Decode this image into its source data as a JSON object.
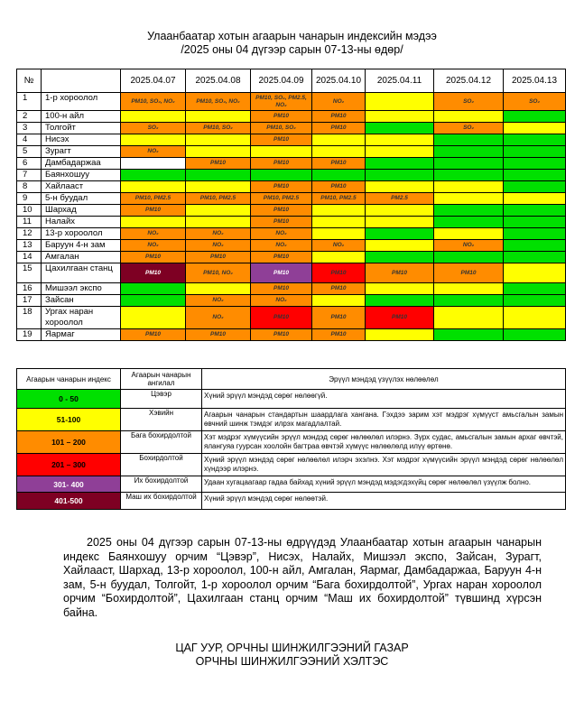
{
  "title_line1": "Улаанбаатар хотын агаарын чанарын индексийн мэдээ",
  "title_line2": "/2025 оны 04 дүгээр сарын 07-13-ны өдөр/",
  "colors": {
    "g": "#00e000",
    "y": "#ffff00",
    "o": "#ff8c00",
    "r": "#ff0000",
    "p": "#8f3f97",
    "m": "#7e0023",
    "w": "#ffffff"
  },
  "table": {
    "no_header": "№",
    "dates": [
      "2025.04.07",
      "2025.04.08",
      "2025.04.09",
      "2025.04.10",
      "2025.04.11",
      "2025.04.12",
      "2025.04.13"
    ],
    "rows": [
      {
        "no": "1",
        "name": "1-р хороолол",
        "cells": [
          [
            "o",
            "PM10, SO₂, NO₂"
          ],
          [
            "o",
            "PM10, SO₂, NO₂"
          ],
          [
            "o",
            "PM10, SO₂, PM2.5, NO₂"
          ],
          [
            "o",
            "NO₂"
          ],
          [
            "y",
            ""
          ],
          [
            "o",
            "SO₂"
          ],
          [
            "o",
            "SO₂"
          ]
        ]
      },
      {
        "no": "2",
        "name": "100-н айл",
        "cells": [
          [
            "y",
            ""
          ],
          [
            "y",
            ""
          ],
          [
            "o",
            "PM10"
          ],
          [
            "o",
            "PM10"
          ],
          [
            "y",
            ""
          ],
          [
            "y",
            ""
          ],
          [
            "g",
            ""
          ]
        ]
      },
      {
        "no": "3",
        "name": "Толгойт",
        "cells": [
          [
            "o",
            "SO₂"
          ],
          [
            "o",
            "PM10, SO₂"
          ],
          [
            "o",
            "PM10, SO₂"
          ],
          [
            "o",
            "PM10"
          ],
          [
            "g",
            ""
          ],
          [
            "o",
            "SO₂"
          ],
          [
            "y",
            ""
          ]
        ]
      },
      {
        "no": "4",
        "name": "Нисэх",
        "cells": [
          [
            "y",
            ""
          ],
          [
            "y",
            ""
          ],
          [
            "o",
            "PM10"
          ],
          [
            "y",
            ""
          ],
          [
            "y",
            ""
          ],
          [
            "g",
            ""
          ],
          [
            "g",
            ""
          ]
        ]
      },
      {
        "no": "5",
        "name": "Зурагт",
        "cells": [
          [
            "o",
            "NO₂"
          ],
          [
            "y",
            ""
          ],
          [
            "y",
            ""
          ],
          [
            "y",
            ""
          ],
          [
            "y",
            ""
          ],
          [
            "g",
            ""
          ],
          [
            "g",
            ""
          ]
        ]
      },
      {
        "no": "6",
        "name": "Дамбадаржаа",
        "cells": [
          [
            "w",
            ""
          ],
          [
            "o",
            "PM10"
          ],
          [
            "o",
            "PM10"
          ],
          [
            "o",
            "PM10"
          ],
          [
            "g",
            ""
          ],
          [
            "g",
            ""
          ],
          [
            "g",
            ""
          ]
        ]
      },
      {
        "no": "7",
        "name": "Баянхошуу",
        "cells": [
          [
            "g",
            ""
          ],
          [
            "g",
            ""
          ],
          [
            "g",
            ""
          ],
          [
            "g",
            ""
          ],
          [
            "g",
            ""
          ],
          [
            "g",
            ""
          ],
          [
            "g",
            ""
          ]
        ]
      },
      {
        "no": "8",
        "name": "Хайлааст",
        "cells": [
          [
            "y",
            ""
          ],
          [
            "y",
            ""
          ],
          [
            "o",
            "PM10"
          ],
          [
            "o",
            "PM10"
          ],
          [
            "y",
            ""
          ],
          [
            "y",
            ""
          ],
          [
            "g",
            ""
          ]
        ]
      },
      {
        "no": "9",
        "name": "5-н буудал",
        "cells": [
          [
            "o",
            "PM10, PM2.5"
          ],
          [
            "o",
            "PM10, PM2.5"
          ],
          [
            "o",
            "PM10, PM2.5"
          ],
          [
            "o",
            "PM10, PM2.5"
          ],
          [
            "o",
            "PM2.5"
          ],
          [
            "y",
            ""
          ],
          [
            "y",
            ""
          ]
        ]
      },
      {
        "no": "10",
        "name": "Шархад",
        "cells": [
          [
            "o",
            "PM10"
          ],
          [
            "y",
            ""
          ],
          [
            "o",
            "PM10"
          ],
          [
            "y",
            ""
          ],
          [
            "y",
            ""
          ],
          [
            "g",
            ""
          ],
          [
            "g",
            ""
          ]
        ]
      },
      {
        "no": "11",
        "name": "Налайх",
        "cells": [
          [
            "y",
            ""
          ],
          [
            "y",
            ""
          ],
          [
            "o",
            "PM10"
          ],
          [
            "y",
            ""
          ],
          [
            "y",
            ""
          ],
          [
            "g",
            ""
          ],
          [
            "g",
            ""
          ]
        ]
      },
      {
        "no": "12",
        "name": "13-р хороолол",
        "cells": [
          [
            "o",
            "NO₂"
          ],
          [
            "o",
            "NO₂"
          ],
          [
            "o",
            "NO₂"
          ],
          [
            "y",
            ""
          ],
          [
            "g",
            ""
          ],
          [
            "y",
            ""
          ],
          [
            "g",
            ""
          ]
        ]
      },
      {
        "no": "13",
        "name": "Баруун 4-н зам",
        "cells": [
          [
            "o",
            "NO₂"
          ],
          [
            "o",
            "NO₂"
          ],
          [
            "o",
            "NO₂"
          ],
          [
            "o",
            "NO₂"
          ],
          [
            "y",
            ""
          ],
          [
            "o",
            "NO₂"
          ],
          [
            "g",
            ""
          ]
        ]
      },
      {
        "no": "14",
        "name": "Амгалан",
        "cells": [
          [
            "o",
            "PM10"
          ],
          [
            "o",
            "PM10"
          ],
          [
            "o",
            "PM10"
          ],
          [
            "y",
            ""
          ],
          [
            "g",
            ""
          ],
          [
            "g",
            ""
          ],
          [
            "g",
            ""
          ]
        ]
      },
      {
        "no": "15",
        "name": "Цахилгаан станц",
        "cells": [
          [
            "m",
            "PM10"
          ],
          [
            "o",
            "PM10, NO₂"
          ],
          [
            "p",
            "PM10"
          ],
          [
            "r",
            "PM10"
          ],
          [
            "o",
            "PM10"
          ],
          [
            "o",
            "PM10"
          ],
          [
            "y",
            ""
          ]
        ]
      },
      {
        "no": "16",
        "name": "Мишээл экспо",
        "cells": [
          [
            "g",
            ""
          ],
          [
            "y",
            ""
          ],
          [
            "o",
            "PM10"
          ],
          [
            "o",
            "PM10"
          ],
          [
            "y",
            ""
          ],
          [
            "y",
            ""
          ],
          [
            "g",
            ""
          ]
        ]
      },
      {
        "no": "17",
        "name": "Зайсан",
        "cells": [
          [
            "g",
            ""
          ],
          [
            "o",
            "NO₂"
          ],
          [
            "o",
            "NO₂"
          ],
          [
            "y",
            ""
          ],
          [
            "g",
            ""
          ],
          [
            "g",
            ""
          ],
          [
            "g",
            ""
          ]
        ]
      },
      {
        "no": "18",
        "name": "Ургах наран хороолол",
        "cells": [
          [
            "y",
            ""
          ],
          [
            "o",
            "NO₂"
          ],
          [
            "r",
            "PM10"
          ],
          [
            "o",
            "PM10"
          ],
          [
            "r",
            "PM10"
          ],
          [
            "y",
            ""
          ],
          [
            "y",
            ""
          ]
        ]
      },
      {
        "no": "19",
        "name": "Яармаг",
        "cells": [
          [
            "o",
            "PM10"
          ],
          [
            "o",
            "PM10"
          ],
          [
            "o",
            "PM10"
          ],
          [
            "o",
            "PM10"
          ],
          [
            "y",
            ""
          ],
          [
            "g",
            ""
          ],
          [
            "g",
            ""
          ]
        ]
      }
    ]
  },
  "legend": {
    "h1": "Агаарын чанарын индекс",
    "h2": "Агаарын чанарын ангилал",
    "h3": "Эрүүл мэндэд үзүүлэх нөлөөлөл",
    "rows": [
      {
        "c": "g",
        "range": "0 - 50",
        "cls": "Цэвэр",
        "desc": "Хүний эрүүл мэндэд сөрөг нөлөөгүй."
      },
      {
        "c": "y",
        "range": "51-100",
        "cls": "Хэвийн",
        "desc": "Агаарын чанарын стандартын шаардлага хангана. Гэхдээ зарим хэт мэдрэг хүмүүст  амьсгалын замын өвчний шинж тэмдэг илрэх магадлалтай."
      },
      {
        "c": "o",
        "range": "101 – 200",
        "cls": "Бага бохирдолтой",
        "desc": "Хэт мэдрэг хүмүүсийн эрүүл мэндэд  сөрөг нөлөөлөл илэрнэ. Зүрх судас, амьсгалын замын архаг өвчтэй, ялангуяа гуурсан хоолойн багтраа өвчтэй хүмүүс нөлөөлөлд илүү өртөнө."
      },
      {
        "c": "r",
        "range": "201 – 300",
        "cls": "Бохирдолтой",
        "desc": "Хүний эрүүл мэндэд сөрөг нөлөөлөл илэрч эхэлнэ. Хэт мэдрэг хүмүүсийн эрүүл мэндэд сөрөг нөлөөлөл хүндээр илэрнэ."
      },
      {
        "c": "p",
        "range": "301- 400",
        "cls": "Их бохирдолтой",
        "desc": "Удаан хугацаагаар гадаа байхад хүний эрүүл мэндэд мэдэгдэхүйц сөрөг нөлөөлөл үзүүлж болно."
      },
      {
        "c": "m",
        "range": "401-500",
        "cls": "Маш их бохирдолтой",
        "desc": "Хүний эрүүл мэндэд сөрөг нөлөөтэй."
      }
    ]
  },
  "summary": "2025 оны 04 дүгээр сарын 07-13-ны өдрүүдэд Улаанбаатар хотын агаарын чанарын индекс Баянхошуу орчим “Цэвэр”, Нисэх, Налайх, Мишээл экспо, Зайсан, Зурагт, Хайлааст, Шархад, 13-р хороолол, 100-н айл, Амгалан, Яармаг, Дамбадаржаа, Баруун 4-н зам, 5-н буудал, Толгойт, 1-р хороолол орчим “Бага бохирдолтой”, Ургах наран хороолол орчим “Бохирдолтой”, Цахилгаан станц орчим “Маш их бохирдолтой” түвшинд хүрсэн байна.",
  "footer_line1": "ЦАГ УУР, ОРЧНЫ ШИНЖИЛГЭЭНИЙ ГАЗАР",
  "footer_line2": "ОРЧНЫ ШИНЖИЛГЭЭНИЙ ХЭЛТЭС"
}
